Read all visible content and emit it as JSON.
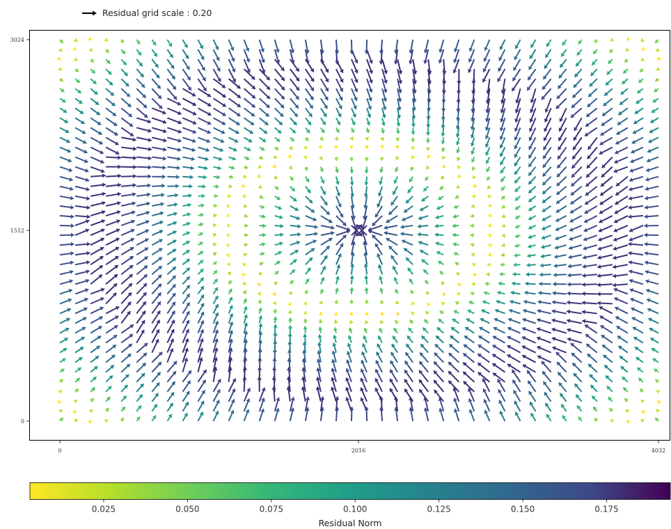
{
  "legend": {
    "label": "Residual grid scale : 0.20"
  },
  "colorbar": {
    "label": "Residual Norm",
    "ticks": [
      0.025,
      0.05,
      0.075,
      0.1,
      0.125,
      0.15,
      0.175
    ],
    "tick_labels": [
      "0.025",
      "0.050",
      "0.075",
      "0.100",
      "0.125",
      "0.150",
      "0.175"
    ],
    "range": [
      0.003,
      0.194
    ],
    "colormap": "viridis_r",
    "colors": [
      "#fde725",
      "#5ec962",
      "#21918c",
      "#3b528b",
      "#440154"
    ]
  },
  "chart_data": {
    "type": "quiver",
    "title": "",
    "xlabel": "",
    "ylabel": "",
    "xlim": [
      0,
      4032
    ],
    "ylim": [
      0,
      3024
    ],
    "x_ticks": [
      0,
      2016,
      4032
    ],
    "x_tick_labels": [
      "0",
      "2016",
      "4032"
    ],
    "y_ticks": [
      0,
      1512,
      3024
    ],
    "y_tick_labels": [
      "0",
      "1512",
      "3024"
    ],
    "grid": false,
    "legend_position": "top-left, above plot",
    "reference_arrow": {
      "scale": 0.2,
      "label": "Residual grid scale : 0.20"
    },
    "grid_x": {
      "start": 0,
      "end": 4032,
      "count": 40
    },
    "grid_y": {
      "start": 0,
      "end": 3024,
      "count": 40
    },
    "vector_field_description": "Radial residual distortion pattern: arrows point inward toward image center (2016,1512) with high norm near center and mid-ring, low norm on a surrounding ring, and large norms at image corners.",
    "norm_range": [
      0.003,
      0.194
    ]
  }
}
